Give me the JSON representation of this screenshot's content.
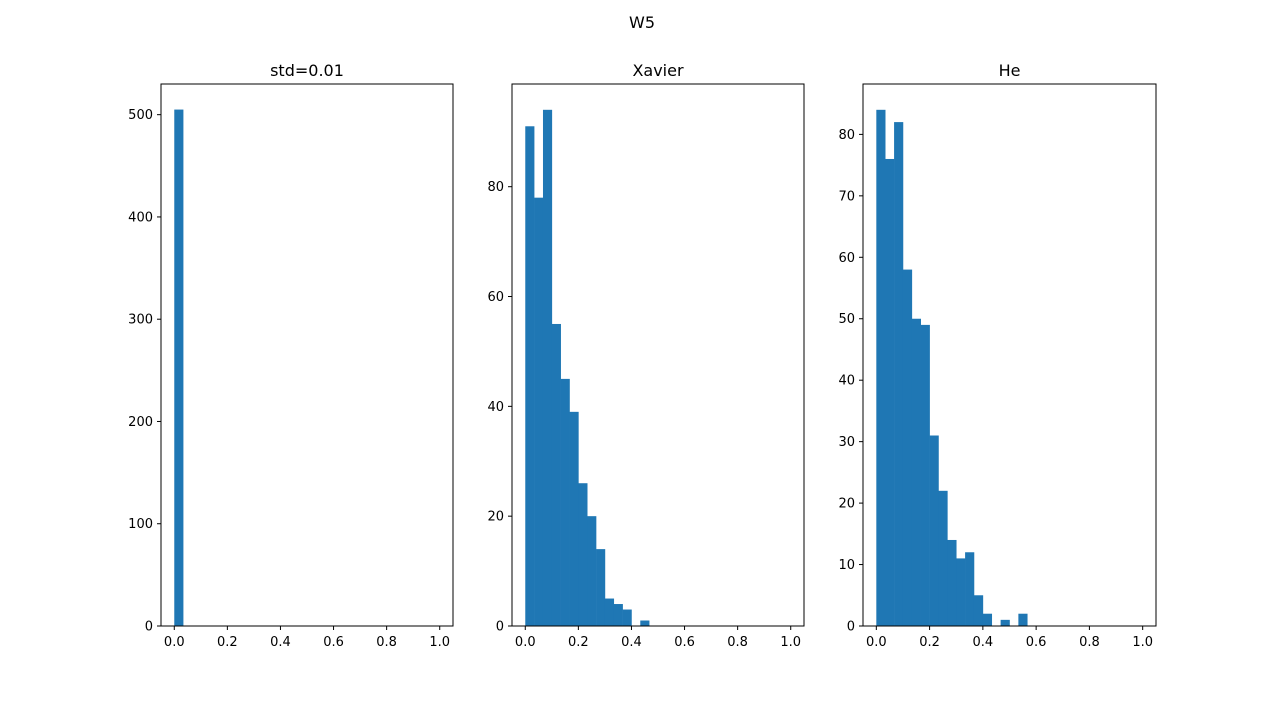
{
  "figure_title": "W5",
  "colors": {
    "bar": "#1f77b4",
    "axes": "#000000",
    "background": "#ffffff"
  },
  "chart_data": [
    {
      "type": "bar",
      "title": "std=0.01",
      "xlabel": "",
      "ylabel": "",
      "xlim": [
        -0.05,
        1.05
      ],
      "ylim": [
        0,
        530
      ],
      "grid": false,
      "xticks": [
        "0.0",
        "0.2",
        "0.4",
        "0.6",
        "0.8",
        "1.0"
      ],
      "yticks": [
        "0",
        "100",
        "200",
        "300",
        "400",
        "500"
      ],
      "bin_width": 0.0333,
      "bins": [
        0.0,
        0.0333,
        0.0667,
        0.1,
        0.1333,
        0.1667,
        0.2,
        0.2333,
        0.2667,
        0.3,
        0.3333,
        0.3667,
        0.4,
        0.4333,
        0.4667,
        0.5,
        0.5333,
        0.5667,
        0.6,
        0.6333,
        0.6667,
        0.7,
        0.7333,
        0.7667,
        0.8,
        0.8333,
        0.8667,
        0.9,
        0.9333,
        0.9667
      ],
      "values": [
        505,
        0,
        0,
        0,
        0,
        0,
        0,
        0,
        0,
        0,
        0,
        0,
        0,
        0,
        0,
        0,
        0,
        0,
        0,
        0,
        0,
        0,
        0,
        0,
        0,
        0,
        0,
        0,
        0,
        0
      ]
    },
    {
      "type": "bar",
      "title": "Xavier",
      "xlabel": "",
      "ylabel": "",
      "xlim": [
        -0.05,
        1.05
      ],
      "ylim": [
        0,
        98.7
      ],
      "grid": false,
      "xticks": [
        "0.0",
        "0.2",
        "0.4",
        "0.6",
        "0.8",
        "1.0"
      ],
      "yticks": [
        "0",
        "20",
        "40",
        "60",
        "80"
      ],
      "bin_width": 0.0333,
      "bins": [
        0.0,
        0.0333,
        0.0667,
        0.1,
        0.1333,
        0.1667,
        0.2,
        0.2333,
        0.2667,
        0.3,
        0.3333,
        0.3667,
        0.4,
        0.4333,
        0.4667,
        0.5,
        0.5333,
        0.5667,
        0.6,
        0.6333,
        0.6667,
        0.7,
        0.7333,
        0.7667,
        0.8,
        0.8333,
        0.8667,
        0.9,
        0.9333,
        0.9667
      ],
      "values": [
        91,
        78,
        94,
        55,
        45,
        39,
        26,
        20,
        14,
        5,
        4,
        3,
        0,
        1,
        0,
        0,
        0,
        0,
        0,
        0,
        0,
        0,
        0,
        0,
        0,
        0,
        0,
        0,
        0,
        0
      ]
    },
    {
      "type": "bar",
      "title": "He",
      "xlabel": "",
      "ylabel": "",
      "xlim": [
        -0.05,
        1.05
      ],
      "ylim": [
        0,
        88.2
      ],
      "grid": false,
      "xticks": [
        "0.0",
        "0.2",
        "0.4",
        "0.6",
        "0.8",
        "1.0"
      ],
      "yticks": [
        "0",
        "10",
        "20",
        "30",
        "40",
        "50",
        "60",
        "70",
        "80"
      ],
      "bin_width": 0.0333,
      "bins": [
        0.0,
        0.0333,
        0.0667,
        0.1,
        0.1333,
        0.1667,
        0.2,
        0.2333,
        0.2667,
        0.3,
        0.3333,
        0.3667,
        0.4,
        0.4333,
        0.4667,
        0.5,
        0.5333,
        0.5667,
        0.6,
        0.6333,
        0.6667,
        0.7,
        0.7333,
        0.7667,
        0.8,
        0.8333,
        0.8667,
        0.9,
        0.9333,
        0.9667
      ],
      "values": [
        84,
        76,
        82,
        58,
        50,
        49,
        31,
        22,
        14,
        11,
        12,
        5,
        2,
        0,
        1,
        0,
        2,
        0,
        0,
        0,
        0,
        0,
        0,
        0,
        0,
        0,
        0,
        0,
        0,
        0
      ]
    }
  ]
}
